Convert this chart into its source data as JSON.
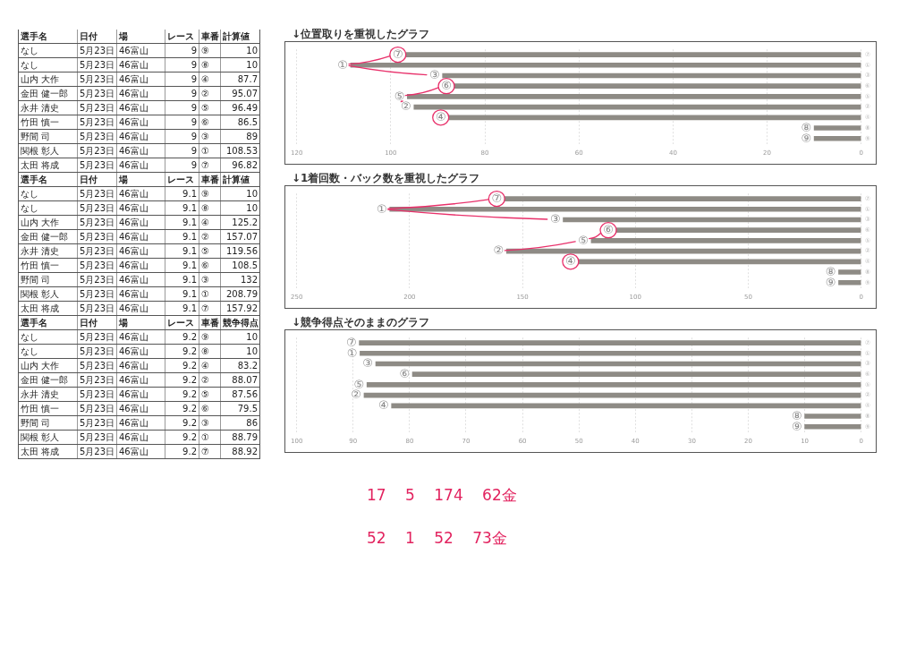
{
  "chart_data": [
    {
      "type": "other",
      "categories": [
        "選手名",
        "日付",
        "場",
        "レース",
        "車番",
        "計算値"
      ],
      "cell_labels": [
        [
          "なし",
          "5月23日",
          "46富山",
          "9",
          "⑨",
          "10"
        ],
        [
          "なし",
          "5月23日",
          "46富山",
          "9",
          "⑧",
          "10"
        ],
        [
          "山内 大作",
          "5月23日",
          "46富山",
          "9",
          "④",
          "87.7"
        ],
        [
          "金田 健一郎",
          "5月23日",
          "46富山",
          "9",
          "②",
          "95.07"
        ],
        [
          "永井 清史",
          "5月23日",
          "46富山",
          "9",
          "⑤",
          "96.49"
        ],
        [
          "竹田 慎一",
          "5月23日",
          "46富山",
          "9",
          "⑥",
          "86.5"
        ],
        [
          "野間 司",
          "5月23日",
          "46富山",
          "9",
          "③",
          "89"
        ],
        [
          "関根 彰人",
          "5月23日",
          "46富山",
          "9",
          "①",
          "108.53"
        ],
        [
          "太田 将成",
          "5月23日",
          "46富山",
          "9",
          "⑦",
          "96.82"
        ]
      ]
    },
    {
      "type": "bar",
      "title": "↓位置取りを重視したグラフ",
      "orientation": "horizontal",
      "categories": [
        "⑦",
        "①",
        "③",
        "⑥",
        "⑤",
        "②",
        "④",
        "⑧",
        "⑨"
      ],
      "values": [
        96.82,
        108.53,
        89,
        86.5,
        96.49,
        95.07,
        87.7,
        10,
        10
      ],
      "color": "#8e8b85",
      "xlim": [
        120,
        0
      ],
      "xticks": [
        120,
        100,
        80,
        60,
        40,
        20,
        0
      ],
      "grid": "x"
    },
    {
      "type": "other",
      "categories": [
        "選手名",
        "日付",
        "場",
        "レース",
        "車番",
        "計算値"
      ],
      "cell_labels": [
        [
          "なし",
          "5月23日",
          "46富山",
          "9.1",
          "⑨",
          "10"
        ],
        [
          "なし",
          "5月23日",
          "46富山",
          "9.1",
          "⑧",
          "10"
        ],
        [
          "山内 大作",
          "5月23日",
          "46富山",
          "9.1",
          "④",
          "125.2"
        ],
        [
          "金田 健一郎",
          "5月23日",
          "46富山",
          "9.1",
          "②",
          "157.07"
        ],
        [
          "永井 清史",
          "5月23日",
          "46富山",
          "9.1",
          "⑤",
          "119.56"
        ],
        [
          "竹田 慎一",
          "5月23日",
          "46富山",
          "9.1",
          "⑥",
          "108.5"
        ],
        [
          "野間 司",
          "5月23日",
          "46富山",
          "9.1",
          "③",
          "132"
        ],
        [
          "関根 彰人",
          "5月23日",
          "46富山",
          "9.1",
          "①",
          "208.79"
        ],
        [
          "太田 将成",
          "5月23日",
          "46富山",
          "9.1",
          "⑦",
          "157.92"
        ]
      ]
    },
    {
      "type": "bar",
      "title": "↓1着回数・バック数を重視したグラフ",
      "orientation": "horizontal",
      "categories": [
        "⑦",
        "①",
        "③",
        "⑥",
        "⑤",
        "②",
        "④",
        "⑧",
        "⑨"
      ],
      "values": [
        157.92,
        208.79,
        132,
        108.5,
        119.56,
        157.07,
        125.2,
        10,
        10
      ],
      "color": "#8e8b85",
      "xlim": [
        250,
        0
      ],
      "xticks": [
        250,
        200,
        150,
        100,
        50,
        0
      ],
      "grid": "x"
    },
    {
      "type": "other",
      "categories": [
        "選手名",
        "日付",
        "場",
        "レース",
        "車番",
        "競争得点"
      ],
      "cell_labels": [
        [
          "なし",
          "5月23日",
          "46富山",
          "9.2",
          "⑨",
          "10"
        ],
        [
          "なし",
          "5月23日",
          "46富山",
          "9.2",
          "⑧",
          "10"
        ],
        [
          "山内 大作",
          "5月23日",
          "46富山",
          "9.2",
          "④",
          "83.2"
        ],
        [
          "金田 健一郎",
          "5月23日",
          "46富山",
          "9.2",
          "②",
          "88.07"
        ],
        [
          "永井 清史",
          "5月23日",
          "46富山",
          "9.2",
          "⑤",
          "87.56"
        ],
        [
          "竹田 慎一",
          "5月23日",
          "46富山",
          "9.2",
          "⑥",
          "79.5"
        ],
        [
          "野間 司",
          "5月23日",
          "46富山",
          "9.2",
          "③",
          "86"
        ],
        [
          "関根 彰人",
          "5月23日",
          "46富山",
          "9.2",
          "①",
          "88.79"
        ],
        [
          "太田 将成",
          "5月23日",
          "46富山",
          "9.2",
          "⑦",
          "88.92"
        ]
      ]
    },
    {
      "type": "bar",
      "title": "↓競争得点そのままのグラフ",
      "orientation": "horizontal",
      "categories": [
        "⑦",
        "①",
        "③",
        "⑥",
        "⑤",
        "②",
        "④",
        "⑧",
        "⑨"
      ],
      "values": [
        88.92,
        88.79,
        86,
        79.5,
        87.56,
        88.07,
        83.2,
        10,
        10
      ],
      "color": "#8e8b85",
      "xlim": [
        100,
        0
      ],
      "xticks": [
        100,
        90,
        80,
        70,
        60,
        50,
        40,
        30,
        20,
        10,
        0
      ],
      "grid": "x",
      "annotations": [
        "17 5 174 62金",
        "52 1 52 73金"
      ]
    }
  ]
}
